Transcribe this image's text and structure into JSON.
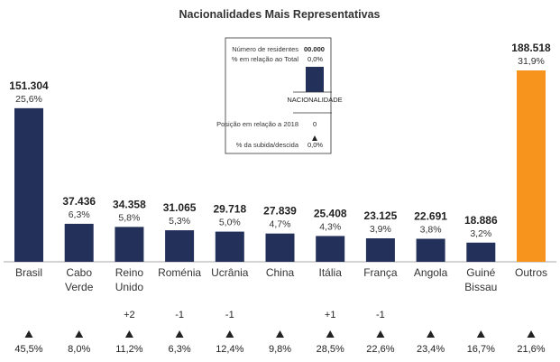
{
  "chart_data": {
    "type": "bar",
    "title": "Nacionalidades Mais Representativas",
    "categories": [
      [
        "Brasil"
      ],
      [
        "Cabo",
        "Verde"
      ],
      [
        "Reino",
        "Unido"
      ],
      [
        "Roménia"
      ],
      [
        "Ucrânia"
      ],
      [
        "China"
      ],
      [
        "Itália"
      ],
      [
        "França"
      ],
      [
        "Angola"
      ],
      [
        "Guiné",
        "Bissau"
      ],
      [
        "Outros"
      ]
    ],
    "values": [
      151304,
      37436,
      34358,
      31065,
      29718,
      27839,
      25408,
      23125,
      22691,
      18886,
      188518
    ],
    "value_labels": [
      "151.304",
      "37.436",
      "34.358",
      "31.065",
      "29.718",
      "27.839",
      "25.408",
      "23.125",
      "22.691",
      "18.886",
      "188.518"
    ],
    "share_labels": [
      "25,6%",
      "6,3%",
      "5,8%",
      "5,3%",
      "5,0%",
      "4,7%",
      "4,3%",
      "3,9%",
      "3,8%",
      "3,2%",
      "31,9%"
    ],
    "rank_change_labels": [
      "",
      "",
      "+2",
      "-1",
      "-1",
      "",
      "+1",
      "-1",
      "",
      "",
      ""
    ],
    "growth_labels": [
      "45,5%",
      "8,0%",
      "11,2%",
      "6,3%",
      "12,4%",
      "9,8%",
      "28,5%",
      "22,6%",
      "23,4%",
      "16,7%",
      "21,6%"
    ],
    "growth_direction": [
      "up",
      "up",
      "up",
      "up",
      "up",
      "up",
      "up",
      "up",
      "up",
      "up",
      "up"
    ],
    "colors": {
      "bar": "#23305a",
      "highlight": "#f7941d",
      "highlight_index": 10,
      "axis": "#aaaaaa"
    },
    "ylim": [
      0,
      200000
    ],
    "legend": {
      "residents_label": "Número de residentes",
      "residents_value": "00.000",
      "share_label": "% em relação ao Total",
      "share_value": "0,0%",
      "bar_label": "NACIONALIDADE",
      "position_label": "Posição em relação a 2018",
      "position_value": "0",
      "growth_label": "% da subida/descida",
      "growth_value": "0,0%"
    }
  }
}
